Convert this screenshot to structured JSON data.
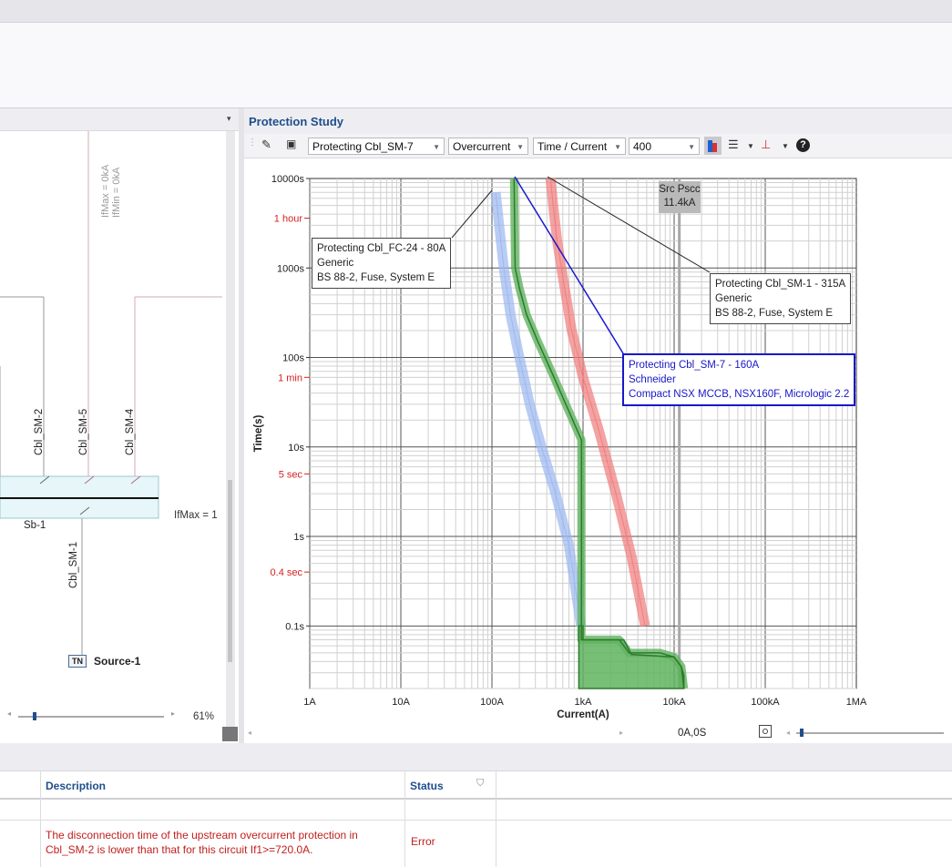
{
  "panel": {
    "title": "Protection Study"
  },
  "toolbar": {
    "protecting_select": "Protecting Cbl_SM-7",
    "mode_select": "Overcurrent",
    "curve_select": "Time / Current",
    "value_select": "400",
    "icons": [
      "pencil-icon",
      "camera-icon",
      "color-icon",
      "settings-icon",
      "cursor-icon",
      "help-icon"
    ]
  },
  "schematic": {
    "vertical_labels": [
      "IfMax = 0kA",
      "IfMin = 0kA"
    ],
    "circuits": [
      "Cbl_SM-2",
      "Cbl_SM-5",
      "Cbl_SM-4"
    ],
    "busbar": "Sb-1",
    "ifmax_label": "IfMax = 1",
    "feeder": "Cbl_SM-1",
    "source_tag": "TN",
    "source_label": "Source-1",
    "zoom": "61%"
  },
  "chart_data": {
    "type": "line",
    "xlabel": "Current(A)",
    "ylabel": "Time(s)",
    "x_scale": "log",
    "y_scale": "log",
    "xlim": [
      1,
      1000000
    ],
    "ylim": [
      0.02,
      10000
    ],
    "x_ticks": [
      "1A",
      "10A",
      "100A",
      "1kA",
      "10kA",
      "100kA",
      "1MA"
    ],
    "y_ticks": [
      "10000s",
      "1000s",
      "100s",
      "10s",
      "1s",
      "0.1s"
    ],
    "y_marks": [
      "1 hour",
      "1 min",
      "5 sec",
      "0.4 sec"
    ],
    "y_mark_values": [
      3600,
      60,
      5,
      0.4
    ],
    "series": [
      {
        "name": "Protecting Cbl_FC-24 - 80A",
        "color": "#9ab6f0",
        "x": [
          110,
          120,
          135,
          160,
          200,
          260,
          350,
          500,
          700,
          950
        ],
        "y": [
          7000,
          3000,
          1000,
          300,
          100,
          30,
          10,
          3,
          0.8,
          0.1
        ]
      },
      {
        "name": "Protecting Cbl_SM-1 - 315A",
        "color": "#f07a7a",
        "x": [
          440,
          470,
          520,
          600,
          750,
          1000,
          1500,
          2300,
          3400,
          4800
        ],
        "y": [
          10000,
          5000,
          2000,
          800,
          200,
          60,
          15,
          3,
          0.6,
          0.1
        ]
      },
      {
        "name": "Protecting Cbl_SM-7 - 160A",
        "color": "#3a9a3a",
        "x": [
          175,
          180,
          200,
          240,
          320,
          480,
          700,
          960,
          960,
          960,
          960,
          960,
          1500,
          2500,
          3200,
          7000,
          10000,
          12000,
          12800
        ],
        "y": [
          10000,
          1000,
          600,
          300,
          150,
          60,
          25,
          12,
          5,
          1,
          0.1,
          0.07,
          0.07,
          0.07,
          0.05,
          0.05,
          0.045,
          0.035,
          0.02
        ]
      }
    ],
    "callouts": [
      {
        "lines": [
          "Protecting Cbl_FC-24 - 80A",
          "Generic",
          "BS 88-2, Fuse, System E"
        ]
      },
      {
        "lines": [
          "Protecting Cbl_SM-1 - 315A",
          "Generic",
          "BS 88-2, Fuse, System E"
        ]
      },
      {
        "lines": [
          "Protecting Cbl_SM-7 - 160A",
          "Schneider",
          "Compact NSX MCCB, NSX160F, Micrologic 2.2"
        ]
      }
    ],
    "marker": {
      "label": "Src Pscc",
      "value_label": "11.4kA",
      "x": 11400
    },
    "readout": "0A,0S"
  },
  "results": {
    "columns": [
      "Description",
      "Status"
    ],
    "rows": [
      {
        "description": "The disconnection time of the upstream overcurrent protection in Cbl_SM-2 is lower than that for this circuit If1>=720.0A.",
        "status": "Error"
      }
    ]
  },
  "colors": {
    "accent": "#1f4e8c",
    "error": "#c0201f"
  }
}
